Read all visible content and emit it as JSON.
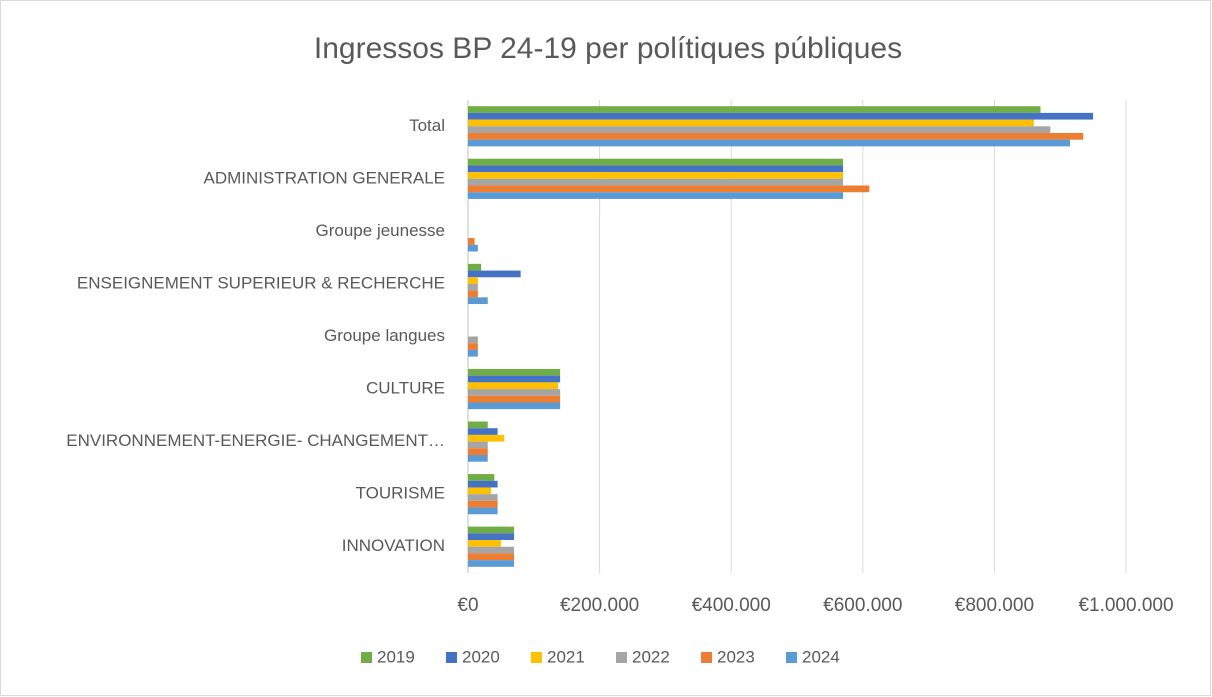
{
  "chart_data": {
    "type": "barh",
    "title": "Ingressos BP 24-19 per polítiques públiques",
    "categories": [
      "Total",
      "ADMINISTRATION GENERALE",
      "Groupe jeunesse",
      "ENSEIGNEMENT SUPERIEUR & RECHERCHE",
      "Groupe langues",
      "CULTURE",
      "ENVIRONNEMENT-ENERGIE- CHANGEMENT…",
      "TOURISME",
      "INNOVATION"
    ],
    "series": [
      {
        "name": "2019",
        "color": "#70ad47",
        "values": [
          870000,
          570000,
          0,
          20000,
          0,
          140000,
          30000,
          40000,
          70000
        ]
      },
      {
        "name": "2020",
        "color": "#4472c4",
        "values": [
          950000,
          570000,
          0,
          80000,
          0,
          140000,
          45000,
          45000,
          70000
        ]
      },
      {
        "name": "2021",
        "color": "#ffc000",
        "values": [
          860000,
          570000,
          0,
          15000,
          0,
          137000,
          55000,
          35000,
          50000
        ]
      },
      {
        "name": "2022",
        "color": "#a5a5a5",
        "values": [
          885000,
          570000,
          0,
          15000,
          15000,
          140000,
          30000,
          45000,
          70000
        ]
      },
      {
        "name": "2023",
        "color": "#ed7d31",
        "values": [
          935000,
          610000,
          10000,
          15000,
          15000,
          140000,
          30000,
          45000,
          70000
        ]
      },
      {
        "name": "2024",
        "color": "#5b9bd5",
        "values": [
          915000,
          570000,
          15000,
          30000,
          15000,
          140000,
          30000,
          45000,
          70000
        ]
      }
    ],
    "xlim": [
      0,
      1000000
    ],
    "xticks": [
      {
        "value": 0,
        "label": "€0"
      },
      {
        "value": 200000,
        "label": "€200.000"
      },
      {
        "value": 400000,
        "label": "€400.000"
      },
      {
        "value": 600000,
        "label": "€600.000"
      },
      {
        "value": 800000,
        "label": "€800.000"
      },
      {
        "value": 1000000,
        "label": "€1.000.000"
      }
    ],
    "grid": true,
    "legend": "bottom"
  }
}
